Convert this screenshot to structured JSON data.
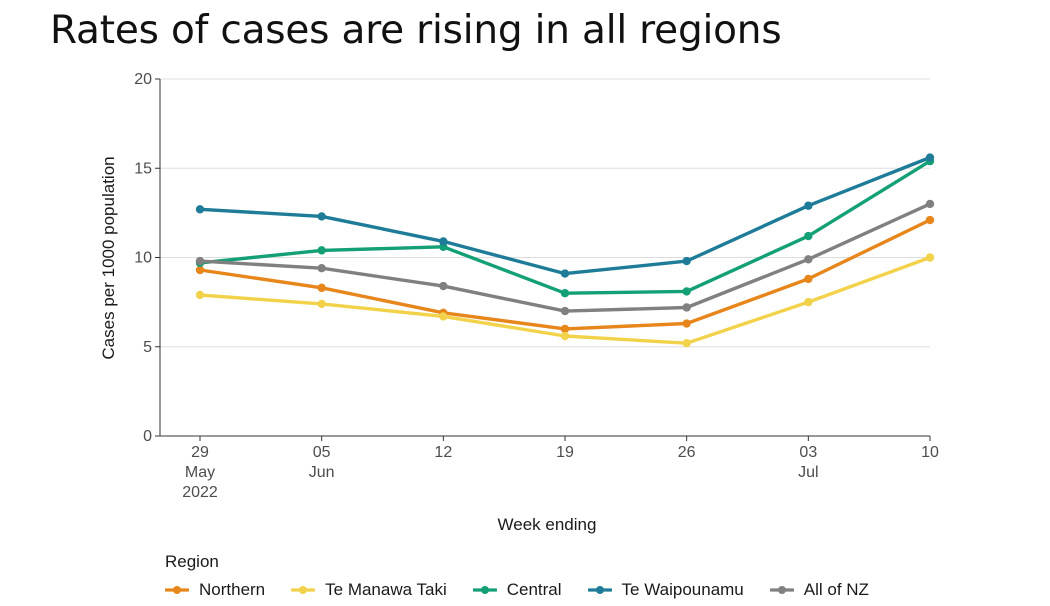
{
  "page": {
    "title": "Rates of cases are rising in all regions"
  },
  "chart_data": {
    "type": "line",
    "title": "Rates of cases are rising in all regions",
    "xlabel": "Week ending",
    "ylabel": "Cases per 1000 population",
    "ylim": [
      0,
      20
    ],
    "yticks": [
      0,
      5,
      10,
      15,
      20
    ],
    "grid": true,
    "categories": [
      {
        "lines": [
          "29",
          "May",
          "2022"
        ]
      },
      {
        "lines": [
          "05",
          "Jun"
        ]
      },
      {
        "lines": [
          "12"
        ]
      },
      {
        "lines": [
          "19"
        ]
      },
      {
        "lines": [
          "26"
        ]
      },
      {
        "lines": [
          "03",
          "Jul"
        ]
      },
      {
        "lines": [
          "10"
        ]
      }
    ],
    "legend_title": "Region",
    "legend_position": "bottom",
    "series": [
      {
        "name": "Northern",
        "color": "#e6861b",
        "values": [
          9.3,
          8.3,
          6.9,
          6.0,
          6.3,
          8.8,
          12.1
        ]
      },
      {
        "name": "Te Manawa Taki",
        "color": "#f2d24a",
        "values": [
          7.9,
          7.4,
          6.7,
          5.6,
          5.2,
          7.5,
          10.0
        ]
      },
      {
        "name": "Central",
        "color": "#14a077",
        "values": [
          9.7,
          10.4,
          10.6,
          8.0,
          8.1,
          11.2,
          15.4
        ]
      },
      {
        "name": "Te Waipounamu",
        "color": "#1f7c98",
        "values": [
          12.7,
          12.3,
          10.9,
          9.1,
          9.8,
          12.9,
          15.6
        ]
      },
      {
        "name": "All of NZ",
        "color": "#808080",
        "values": [
          9.8,
          9.4,
          8.4,
          7.0,
          7.2,
          9.9,
          13.0
        ]
      }
    ]
  }
}
